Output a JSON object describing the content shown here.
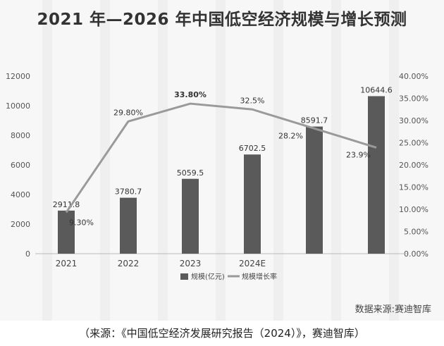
{
  "chart_data": {
    "type": "bar",
    "title": "2021 年—2026 年中国低空经济规模与增长预测",
    "categories": [
      "2021",
      "2022",
      "2023",
      "2024E",
      "",
      ""
    ],
    "series": [
      {
        "name": "规模(亿元)",
        "type": "bar",
        "axis": "left",
        "values": [
          2911.8,
          3780.7,
          5059.5,
          6702.5,
          8591.7,
          10644.6
        ],
        "labels": [
          "2911.8",
          "3780.7",
          "5059.5",
          "6702.5",
          "8591.7",
          "10644.6"
        ],
        "color": "#5a5a5a"
      },
      {
        "name": "规模增长率",
        "type": "line",
        "axis": "right",
        "values": [
          9.3,
          29.8,
          33.8,
          32.5,
          28.2,
          23.9
        ],
        "labels": [
          "9.30%",
          "29.80%",
          "33.80%",
          "32.5%",
          "28.2%",
          "23.9%"
        ],
        "color": "#9a9a9a"
      }
    ],
    "y_left": {
      "lim": [
        0,
        12000
      ],
      "ticks": [
        "0",
        "2000",
        "4000",
        "6000",
        "8000",
        "10000",
        "12000"
      ]
    },
    "y_right": {
      "lim": [
        0,
        40
      ],
      "ticks": [
        "0.00%",
        "5.00%",
        "10.00%",
        "15.00%",
        "20.00%",
        "25.00%",
        "30.00%",
        "35.00%",
        "40.00%"
      ]
    },
    "grid": false,
    "legend_position": "bottom"
  },
  "source_note": "数据来源:赛迪智库",
  "caption": "（来源：《中国低空经济发展研究报告（2024）》，赛迪智库）"
}
